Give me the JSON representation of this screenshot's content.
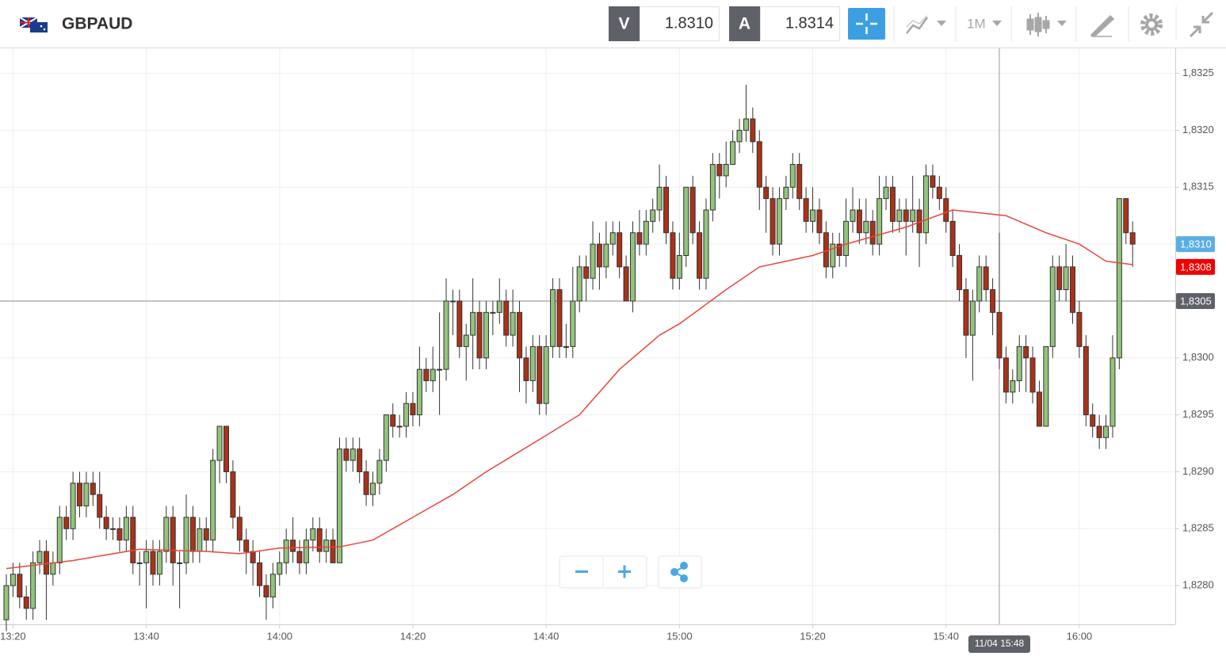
{
  "toolbar": {
    "symbol": "GBPAUD",
    "sell_label": "V",
    "sell_price": "1.8310",
    "buy_label": "A",
    "buy_price": "1.8314",
    "timeframe": "1M"
  },
  "chart_data": {
    "type": "candlestick",
    "up_color": "#93c47d",
    "down_color": "#a93219",
    "candles": [
      [
        1.8277,
        1.8281,
        1.8276,
        1.828
      ],
      [
        1.828,
        1.8282,
        1.8279,
        1.8281
      ],
      [
        1.8281,
        1.8282,
        1.8278,
        1.8279
      ],
      [
        1.8279,
        1.828,
        1.8277,
        1.8278
      ],
      [
        1.8278,
        1.8283,
        1.8277,
        1.8282
      ],
      [
        1.8282,
        1.8284,
        1.8281,
        1.8283
      ],
      [
        1.8283,
        1.8284,
        1.8277,
        1.8281
      ],
      [
        1.8281,
        1.8283,
        1.828,
        1.8282
      ],
      [
        1.8282,
        1.8287,
        1.8281,
        1.8286
      ],
      [
        1.8286,
        1.8287,
        1.8284,
        1.8285
      ],
      [
        1.8285,
        1.829,
        1.8284,
        1.8289
      ],
      [
        1.8289,
        1.829,
        1.8286,
        1.8287
      ],
      [
        1.8287,
        1.829,
        1.8286,
        1.8289
      ],
      [
        1.8289,
        1.829,
        1.8287,
        1.8288
      ],
      [
        1.8288,
        1.829,
        1.8285,
        1.8286
      ],
      [
        1.8286,
        1.8287,
        1.8284,
        1.8285
      ],
      [
        1.8285,
        1.8286,
        1.8284,
        1.8285
      ],
      [
        1.8285,
        1.8286,
        1.8283,
        1.8284
      ],
      [
        1.8284,
        1.8287,
        1.8283,
        1.8286
      ],
      [
        1.8286,
        1.8287,
        1.8281,
        1.8282
      ],
      [
        1.8282,
        1.8283,
        1.828,
        1.8282
      ],
      [
        1.8282,
        1.8284,
        1.8278,
        1.8283
      ],
      [
        1.8283,
        1.8284,
        1.828,
        1.8281
      ],
      [
        1.8281,
        1.8284,
        1.828,
        1.8283
      ],
      [
        1.8283,
        1.8287,
        1.8282,
        1.8286
      ],
      [
        1.8286,
        1.8287,
        1.828,
        1.8282
      ],
      [
        1.8282,
        1.8283,
        1.8278,
        1.8282
      ],
      [
        1.8282,
        1.8288,
        1.8281,
        1.8286
      ],
      [
        1.8286,
        1.8287,
        1.8282,
        1.8283
      ],
      [
        1.8283,
        1.8286,
        1.8282,
        1.8285
      ],
      [
        1.8285,
        1.8286,
        1.8283,
        1.8284
      ],
      [
        1.8284,
        1.8292,
        1.8283,
        1.8291
      ],
      [
        1.8291,
        1.8294,
        1.8289,
        1.8294
      ],
      [
        1.8294,
        1.8294,
        1.8289,
        1.829
      ],
      [
        1.829,
        1.8291,
        1.8285,
        1.8286
      ],
      [
        1.8286,
        1.8287,
        1.8283,
        1.8284
      ],
      [
        1.8284,
        1.8285,
        1.8281,
        1.8283
      ],
      [
        1.8283,
        1.8284,
        1.828,
        1.8282
      ],
      [
        1.8282,
        1.8283,
        1.8279,
        1.828
      ],
      [
        1.828,
        1.8281,
        1.8277,
        1.8279
      ],
      [
        1.8279,
        1.8282,
        1.8278,
        1.8281
      ],
      [
        1.8281,
        1.8283,
        1.828,
        1.8282
      ],
      [
        1.8282,
        1.8285,
        1.8281,
        1.8284
      ],
      [
        1.8284,
        1.8286,
        1.8282,
        1.8283
      ],
      [
        1.8283,
        1.8284,
        1.8281,
        1.8282
      ],
      [
        1.8282,
        1.8285,
        1.8281,
        1.8284
      ],
      [
        1.8284,
        1.8286,
        1.8283,
        1.8285
      ],
      [
        1.8285,
        1.8286,
        1.8282,
        1.8283
      ],
      [
        1.8283,
        1.8285,
        1.8282,
        1.8284
      ],
      [
        1.8284,
        1.8285,
        1.8282,
        1.8282
      ],
      [
        1.8282,
        1.8293,
        1.8282,
        1.8292
      ],
      [
        1.8292,
        1.8293,
        1.829,
        1.8291
      ],
      [
        1.8291,
        1.8293,
        1.829,
        1.8292
      ],
      [
        1.8292,
        1.8293,
        1.8289,
        1.829
      ],
      [
        1.829,
        1.8291,
        1.8287,
        1.8288
      ],
      [
        1.8288,
        1.829,
        1.8287,
        1.8289
      ],
      [
        1.8289,
        1.8292,
        1.8288,
        1.8291
      ],
      [
        1.8291,
        1.8295,
        1.829,
        1.8295
      ],
      [
        1.8295,
        1.8296,
        1.8293,
        1.8294
      ],
      [
        1.8294,
        1.8295,
        1.8293,
        1.8294
      ],
      [
        1.8294,
        1.8297,
        1.8293,
        1.8296
      ],
      [
        1.8296,
        1.8297,
        1.8294,
        1.8295
      ],
      [
        1.8295,
        1.8301,
        1.8294,
        1.8299
      ],
      [
        1.8299,
        1.83,
        1.8297,
        1.8298
      ],
      [
        1.8298,
        1.8301,
        1.8297,
        1.8299
      ],
      [
        1.8299,
        1.8304,
        1.8295,
        1.8299
      ],
      [
        1.8299,
        1.8307,
        1.8298,
        1.8305
      ],
      [
        1.8305,
        1.8306,
        1.8302,
        1.8305
      ],
      [
        1.8305,
        1.8306,
        1.83,
        1.8301
      ],
      [
        1.8301,
        1.8303,
        1.8298,
        1.8302
      ],
      [
        1.8302,
        1.8307,
        1.8299,
        1.8304
      ],
      [
        1.8304,
        1.8305,
        1.8299,
        1.83
      ],
      [
        1.83,
        1.8305,
        1.8299,
        1.8304
      ],
      [
        1.8304,
        1.8305,
        1.8302,
        1.8304
      ],
      [
        1.8304,
        1.8307,
        1.8303,
        1.8305
      ],
      [
        1.8305,
        1.8306,
        1.8301,
        1.8302
      ],
      [
        1.8302,
        1.8306,
        1.8301,
        1.8304
      ],
      [
        1.8304,
        1.8305,
        1.8297,
        1.83
      ],
      [
        1.83,
        1.8301,
        1.8296,
        1.8298
      ],
      [
        1.8298,
        1.8302,
        1.8297,
        1.8301
      ],
      [
        1.8301,
        1.8302,
        1.8295,
        1.8296
      ],
      [
        1.8296,
        1.8302,
        1.8295,
        1.8301
      ],
      [
        1.8301,
        1.8307,
        1.83,
        1.8306
      ],
      [
        1.8306,
        1.8307,
        1.83,
        1.8301
      ],
      [
        1.8301,
        1.8303,
        1.83,
        1.8301
      ],
      [
        1.8301,
        1.8308,
        1.83,
        1.8305
      ],
      [
        1.8305,
        1.8309,
        1.8304,
        1.8308
      ],
      [
        1.8308,
        1.8309,
        1.8305,
        1.8307
      ],
      [
        1.8307,
        1.8312,
        1.8306,
        1.831
      ],
      [
        1.831,
        1.8311,
        1.8306,
        1.8308
      ],
      [
        1.8308,
        1.8312,
        1.8307,
        1.831
      ],
      [
        1.831,
        1.8312,
        1.8309,
        1.8311
      ],
      [
        1.8311,
        1.8312,
        1.8307,
        1.8308
      ],
      [
        1.8308,
        1.8309,
        1.8305,
        1.8305
      ],
      [
        1.8305,
        1.8312,
        1.8304,
        1.8311
      ],
      [
        1.8311,
        1.8313,
        1.8309,
        1.831
      ],
      [
        1.831,
        1.8313,
        1.8309,
        1.8312
      ],
      [
        1.8312,
        1.8314,
        1.8311,
        1.8313
      ],
      [
        1.8313,
        1.8317,
        1.8312,
        1.8315
      ],
      [
        1.8315,
        1.8316,
        1.831,
        1.8311
      ],
      [
        1.8311,
        1.8312,
        1.8306,
        1.8307
      ],
      [
        1.8307,
        1.8311,
        1.8306,
        1.8309
      ],
      [
        1.8309,
        1.8315,
        1.8308,
        1.8315
      ],
      [
        1.8315,
        1.8316,
        1.831,
        1.8311
      ],
      [
        1.8311,
        1.8312,
        1.8306,
        1.8307
      ],
      [
        1.8307,
        1.8314,
        1.8306,
        1.8313
      ],
      [
        1.8313,
        1.8318,
        1.8312,
        1.8317
      ],
      [
        1.8317,
        1.8318,
        1.8314,
        1.8316
      ],
      [
        1.8316,
        1.8319,
        1.8315,
        1.8317
      ],
      [
        1.8317,
        1.832,
        1.8317,
        1.8319
      ],
      [
        1.8319,
        1.8321,
        1.8318,
        1.832
      ],
      [
        1.832,
        1.8324,
        1.8319,
        1.8321
      ],
      [
        1.8321,
        1.8322,
        1.8318,
        1.8319
      ],
      [
        1.8319,
        1.832,
        1.8313,
        1.8315
      ],
      [
        1.8315,
        1.8316,
        1.8311,
        1.8314
      ],
      [
        1.8314,
        1.8315,
        1.8309,
        1.831
      ],
      [
        1.831,
        1.8315,
        1.8309,
        1.8314
      ],
      [
        1.8314,
        1.8316,
        1.8313,
        1.8315
      ],
      [
        1.8315,
        1.8318,
        1.8314,
        1.8317
      ],
      [
        1.8317,
        1.8318,
        1.8313,
        1.8314
      ],
      [
        1.8314,
        1.8315,
        1.8311,
        1.8312
      ],
      [
        1.8312,
        1.8315,
        1.8311,
        1.8313
      ],
      [
        1.8313,
        1.8314,
        1.831,
        1.8311
      ],
      [
        1.8311,
        1.8312,
        1.8307,
        1.8308
      ],
      [
        1.8308,
        1.8311,
        1.8307,
        1.831
      ],
      [
        1.831,
        1.8311,
        1.8308,
        1.8309
      ],
      [
        1.8309,
        1.8314,
        1.8308,
        1.8312
      ],
      [
        1.8312,
        1.8315,
        1.8311,
        1.8313
      ],
      [
        1.8313,
        1.8314,
        1.831,
        1.8311
      ],
      [
        1.8311,
        1.8314,
        1.831,
        1.8312
      ],
      [
        1.8312,
        1.8313,
        1.8309,
        1.831
      ],
      [
        1.831,
        1.8316,
        1.8309,
        1.8314
      ],
      [
        1.8314,
        1.8316,
        1.8313,
        1.8315
      ],
      [
        1.8315,
        1.8316,
        1.8311,
        1.8312
      ],
      [
        1.8312,
        1.8314,
        1.8311,
        1.8313
      ],
      [
        1.8313,
        1.8314,
        1.8309,
        1.8312
      ],
      [
        1.8312,
        1.8316,
        1.8311,
        1.8313
      ],
      [
        1.8313,
        1.8314,
        1.8308,
        1.8311
      ],
      [
        1.8311,
        1.8317,
        1.831,
        1.8316
      ],
      [
        1.8316,
        1.8317,
        1.8314,
        1.8315
      ],
      [
        1.8315,
        1.8316,
        1.8313,
        1.8314
      ],
      [
        1.8314,
        1.8315,
        1.8311,
        1.8312
      ],
      [
        1.8312,
        1.8313,
        1.8308,
        1.8309
      ],
      [
        1.8309,
        1.831,
        1.8305,
        1.8306
      ],
      [
        1.8306,
        1.8307,
        1.83,
        1.8302
      ],
      [
        1.8302,
        1.8306,
        1.8298,
        1.8305
      ],
      [
        1.8305,
        1.8309,
        1.8304,
        1.8308
      ],
      [
        1.8308,
        1.8309,
        1.8305,
        1.8306
      ],
      [
        1.8306,
        1.8307,
        1.8302,
        1.8304
      ],
      [
        1.8304,
        1.8311,
        1.8299,
        1.83
      ],
      [
        1.83,
        1.8301,
        1.8296,
        1.8297
      ],
      [
        1.8297,
        1.8299,
        1.8296,
        1.8298
      ],
      [
        1.8298,
        1.8302,
        1.8297,
        1.8301
      ],
      [
        1.8301,
        1.8302,
        1.8297,
        1.83
      ],
      [
        1.83,
        1.8301,
        1.8296,
        1.8297
      ],
      [
        1.8297,
        1.8298,
        1.8294,
        1.8294
      ],
      [
        1.8294,
        1.8301,
        1.8294,
        1.8301
      ],
      [
        1.8301,
        1.8309,
        1.83,
        1.8308
      ],
      [
        1.8308,
        1.8309,
        1.8305,
        1.8306
      ],
      [
        1.8306,
        1.831,
        1.8305,
        1.8308
      ],
      [
        1.8308,
        1.8309,
        1.8303,
        1.8304
      ],
      [
        1.8304,
        1.8305,
        1.83,
        1.8301
      ],
      [
        1.8301,
        1.8302,
        1.8294,
        1.8295
      ],
      [
        1.8295,
        1.8296,
        1.8293,
        1.8294
      ],
      [
        1.8294,
        1.8295,
        1.8292,
        1.8293
      ],
      [
        1.8293,
        1.8295,
        1.8292,
        1.8294
      ],
      [
        1.8294,
        1.8302,
        1.8293,
        1.83
      ],
      [
        1.83,
        1.8314,
        1.8299,
        1.8314
      ],
      [
        1.8314,
        1.8314,
        1.831,
        1.8311
      ],
      [
        1.8311,
        1.8312,
        1.8308,
        1.831
      ]
    ],
    "ma": {
      "color": "#e8463a",
      "x": [
        0,
        10,
        20,
        30,
        35,
        41,
        50,
        55,
        61,
        67,
        72,
        81,
        86,
        92,
        98,
        101,
        108,
        113,
        121,
        126,
        135,
        142,
        150,
        156,
        161,
        165,
        169
      ],
      "values": [
        1.82815,
        1.82822,
        1.82832,
        1.8283,
        1.82828,
        1.82833,
        1.82834,
        1.8284,
        1.8286,
        1.8288,
        1.829,
        1.82932,
        1.8295,
        1.8299,
        1.8302,
        1.8303,
        1.8306,
        1.8308,
        1.8309,
        1.831,
        1.83115,
        1.8313,
        1.83125,
        1.8311,
        1.831,
        1.83085,
        1.83082
      ]
    },
    "xlim": [
      -0.95,
      175.4
    ],
    "xticks": [
      {
        "value": 1,
        "label": "13:20"
      },
      {
        "value": 21,
        "label": "13:40"
      },
      {
        "value": 41,
        "label": "14:00"
      },
      {
        "value": 61,
        "label": "14:20"
      },
      {
        "value": 81,
        "label": "14:40"
      },
      {
        "value": 101,
        "label": "15:00"
      },
      {
        "value": 121,
        "label": "15:20"
      },
      {
        "value": 141,
        "label": "15:40"
      },
      {
        "value": 161,
        "label": "16:00"
      }
    ],
    "ylim": [
      1.82766,
      1.83272
    ],
    "yticks": [
      {
        "value": 1.828,
        "label": "1,8280"
      },
      {
        "value": 1.8285,
        "label": "1,8285"
      },
      {
        "value": 1.829,
        "label": "1,8290"
      },
      {
        "value": 1.8295,
        "label": "1,8295"
      },
      {
        "value": 1.83,
        "label": "1,8300"
      },
      {
        "value": 1.8305,
        "label": "1,8305"
      },
      {
        "value": 1.831,
        "label": "1,8310"
      },
      {
        "value": 1.8315,
        "label": "1,8315"
      },
      {
        "value": 1.832,
        "label": "1,8320"
      },
      {
        "value": 1.8325,
        "label": "1,8325"
      }
    ],
    "grid": true,
    "crosshair": {
      "x": {
        "value": 149,
        "label": "11/04 15:48"
      },
      "y": {
        "value": 1.8305,
        "label": "1,8305"
      }
    },
    "price_markers": [
      {
        "value": 1.831,
        "label": "1,8310",
        "color": "#5aaee3"
      },
      {
        "value": 1.8308,
        "label": "1,8308",
        "color": "#f00000"
      }
    ]
  }
}
